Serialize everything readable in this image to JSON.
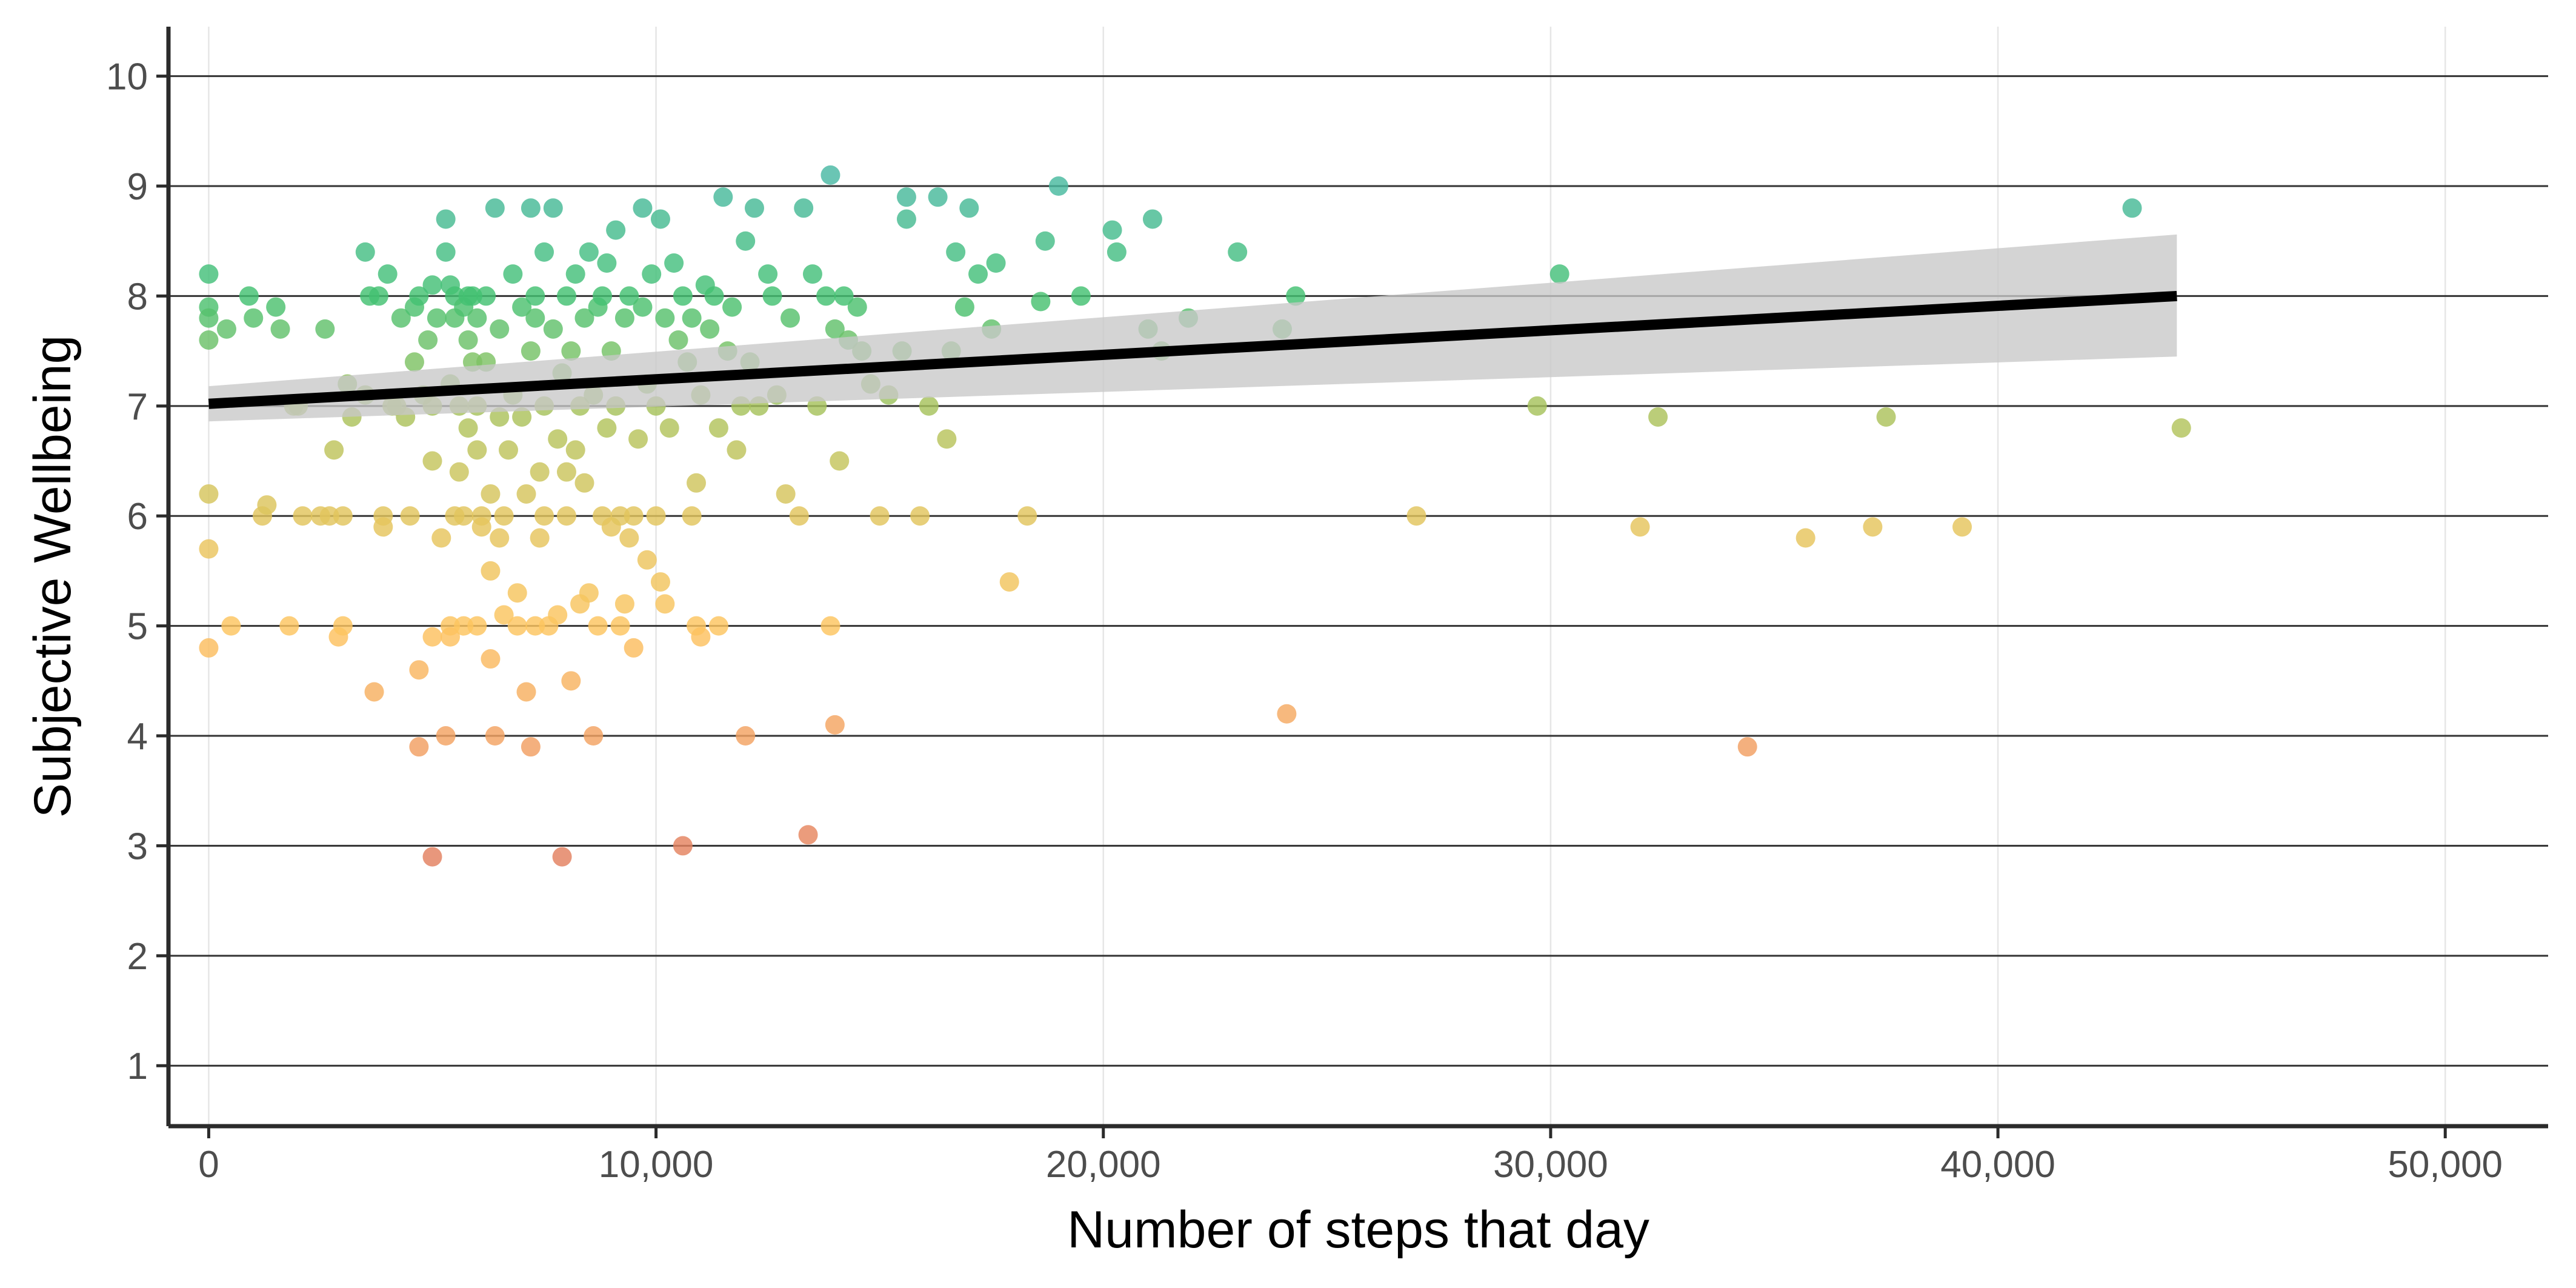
{
  "chart_data": {
    "type": "scatter",
    "title": "",
    "xlabel": "Number of steps that day",
    "ylabel": "Subjective Wellbeing",
    "xlim": [
      -900,
      52300
    ],
    "ylim": [
      0.45,
      10.45
    ],
    "x_ticks": [
      0,
      10000,
      20000,
      30000,
      40000,
      50000
    ],
    "x_tick_labels": [
      "0",
      "10,000",
      "20,000",
      "30,000",
      "40,000",
      "50,000"
    ],
    "y_ticks": [
      1,
      2,
      3,
      4,
      5,
      6,
      7,
      8,
      9,
      10
    ],
    "y_tick_labels": [
      "1",
      "2",
      "3",
      "4",
      "5",
      "6",
      "7",
      "8",
      "9",
      "10"
    ],
    "grid": {
      "major_y": true,
      "x": true
    },
    "legend": "none",
    "color_scale": {
      "variable": "y",
      "stops": [
        {
          "value": 2.9,
          "color": "#e3805f"
        },
        {
          "value": 4.0,
          "color": "#f3a261"
        },
        {
          "value": 5.0,
          "color": "#fdc45f"
        },
        {
          "value": 6.0,
          "color": "#e2c55d"
        },
        {
          "value": 7.0,
          "color": "#a6c25c"
        },
        {
          "value": 8.0,
          "color": "#43c171"
        },
        {
          "value": 9.1,
          "color": "#49b8a4"
        }
      ]
    },
    "fit": {
      "type": "linear",
      "x": [
        0,
        44000
      ],
      "y": [
        7.02,
        8.0
      ],
      "ci_lower": [
        6.86,
        7.45
      ],
      "ci_upper": [
        7.18,
        8.56
      ],
      "line_color": "#000000",
      "band_color": "#c8c8c8"
    },
    "points": [
      [
        0,
        8.2
      ],
      [
        0,
        7.9
      ],
      [
        0,
        7.8
      ],
      [
        0,
        7.6
      ],
      [
        0,
        6.2
      ],
      [
        0,
        5.7
      ],
      [
        0,
        4.8
      ],
      [
        400,
        7.7
      ],
      [
        500,
        5.0
      ],
      [
        900,
        8.0
      ],
      [
        1000,
        7.8
      ],
      [
        1200,
        6.0
      ],
      [
        1300,
        6.1
      ],
      [
        1500,
        7.9
      ],
      [
        1600,
        7.7
      ],
      [
        1800,
        5.0
      ],
      [
        1900,
        7.0
      ],
      [
        2000,
        7.0
      ],
      [
        2100,
        6.0
      ],
      [
        2500,
        6.0
      ],
      [
        2600,
        7.7
      ],
      [
        2700,
        6.0
      ],
      [
        2800,
        6.6
      ],
      [
        2900,
        4.9
      ],
      [
        3000,
        5.0
      ],
      [
        3000,
        6.0
      ],
      [
        3100,
        7.2
      ],
      [
        3200,
        6.9
      ],
      [
        3500,
        8.4
      ],
      [
        3500,
        7.1
      ],
      [
        3600,
        8.0
      ],
      [
        3700,
        4.4
      ],
      [
        3800,
        8.0
      ],
      [
        3900,
        6.0
      ],
      [
        3900,
        5.9
      ],
      [
        4000,
        8.2
      ],
      [
        4100,
        7.0
      ],
      [
        4200,
        7.0
      ],
      [
        4300,
        7.8
      ],
      [
        4400,
        6.9
      ],
      [
        4500,
        6.0
      ],
      [
        4600,
        7.4
      ],
      [
        4600,
        7.9
      ],
      [
        4700,
        3.9
      ],
      [
        4700,
        4.6
      ],
      [
        4700,
        8.0
      ],
      [
        4800,
        7.1
      ],
      [
        4900,
        7.6
      ],
      [
        5000,
        8.1
      ],
      [
        5000,
        7.0
      ],
      [
        5000,
        6.5
      ],
      [
        5000,
        4.9
      ],
      [
        5000,
        2.9
      ],
      [
        5100,
        7.8
      ],
      [
        5200,
        5.8
      ],
      [
        5300,
        4.0
      ],
      [
        5300,
        8.7
      ],
      [
        5300,
        8.4
      ],
      [
        5400,
        8.1
      ],
      [
        5400,
        7.2
      ],
      [
        5400,
        5.0
      ],
      [
        5400,
        4.9
      ],
      [
        5500,
        6.0
      ],
      [
        5500,
        7.8
      ],
      [
        5500,
        8.0
      ],
      [
        5600,
        6.4
      ],
      [
        5600,
        7.0
      ],
      [
        5700,
        7.9
      ],
      [
        5700,
        6.0
      ],
      [
        5700,
        5.0
      ],
      [
        5800,
        8.0
      ],
      [
        5800,
        7.6
      ],
      [
        5800,
        6.8
      ],
      [
        5900,
        7.4
      ],
      [
        5900,
        8.0
      ],
      [
        6000,
        7.8
      ],
      [
        6000,
        7.0
      ],
      [
        6000,
        6.6
      ],
      [
        6000,
        5.0
      ],
      [
        6100,
        6.0
      ],
      [
        6100,
        5.9
      ],
      [
        6200,
        7.4
      ],
      [
        6200,
        8.0
      ],
      [
        6300,
        6.2
      ],
      [
        6300,
        5.5
      ],
      [
        6300,
        4.7
      ],
      [
        6400,
        4.0
      ],
      [
        6400,
        8.8
      ],
      [
        6500,
        5.8
      ],
      [
        6500,
        6.9
      ],
      [
        6500,
        7.7
      ],
      [
        6600,
        5.1
      ],
      [
        6600,
        6.0
      ],
      [
        6700,
        6.6
      ],
      [
        6800,
        7.1
      ],
      [
        6800,
        8.2
      ],
      [
        6900,
        5.3
      ],
      [
        6900,
        5.0
      ],
      [
        7000,
        7.9
      ],
      [
        7000,
        6.9
      ],
      [
        7100,
        4.4
      ],
      [
        7100,
        6.2
      ],
      [
        7200,
        3.9
      ],
      [
        7200,
        7.5
      ],
      [
        7200,
        8.8
      ],
      [
        7300,
        8.0
      ],
      [
        7300,
        5.0
      ],
      [
        7300,
        7.8
      ],
      [
        7400,
        6.4
      ],
      [
        7400,
        5.8
      ],
      [
        7500,
        8.4
      ],
      [
        7500,
        6.0
      ],
      [
        7500,
        7.0
      ],
      [
        7600,
        5.0
      ],
      [
        7700,
        8.8
      ],
      [
        7700,
        7.7
      ],
      [
        7800,
        6.7
      ],
      [
        7800,
        5.1
      ],
      [
        7900,
        2.9
      ],
      [
        7900,
        7.3
      ],
      [
        8000,
        6.4
      ],
      [
        8000,
        8.0
      ],
      [
        8000,
        6.0
      ],
      [
        8100,
        4.5
      ],
      [
        8100,
        7.5
      ],
      [
        8200,
        6.6
      ],
      [
        8200,
        8.2
      ],
      [
        8300,
        7.0
      ],
      [
        8300,
        5.2
      ],
      [
        8400,
        7.8
      ],
      [
        8400,
        6.3
      ],
      [
        8500,
        8.4
      ],
      [
        8500,
        5.3
      ],
      [
        8600,
        7.1
      ],
      [
        8600,
        4.0
      ],
      [
        8700,
        5.0
      ],
      [
        8700,
        7.9
      ],
      [
        8800,
        6.0
      ],
      [
        8800,
        8.0
      ],
      [
        8900,
        8.3
      ],
      [
        8900,
        6.8
      ],
      [
        9000,
        7.5
      ],
      [
        9000,
        5.9
      ],
      [
        9100,
        8.6
      ],
      [
        9100,
        7.0
      ],
      [
        9200,
        5.0
      ],
      [
        9200,
        6.0
      ],
      [
        9300,
        5.2
      ],
      [
        9300,
        7.8
      ],
      [
        9400,
        5.8
      ],
      [
        9400,
        8.0
      ],
      [
        9500,
        6.0
      ],
      [
        9500,
        4.8
      ],
      [
        9600,
        6.7
      ],
      [
        9700,
        7.9
      ],
      [
        9700,
        8.8
      ],
      [
        9800,
        5.6
      ],
      [
        9800,
        7.2
      ],
      [
        9900,
        8.2
      ],
      [
        10000,
        7.0
      ],
      [
        10000,
        6.0
      ],
      [
        10100,
        5.4
      ],
      [
        10100,
        8.7
      ],
      [
        10200,
        5.2
      ],
      [
        10200,
        7.8
      ],
      [
        10300,
        6.8
      ],
      [
        10400,
        8.3
      ],
      [
        10500,
        7.6
      ],
      [
        10600,
        8.0
      ],
      [
        10600,
        3.0
      ],
      [
        10700,
        7.4
      ],
      [
        10800,
        6.0
      ],
      [
        10800,
        7.8
      ],
      [
        10900,
        5.0
      ],
      [
        10900,
        6.3
      ],
      [
        11000,
        4.9
      ],
      [
        11000,
        7.1
      ],
      [
        11100,
        8.1
      ],
      [
        11200,
        7.7
      ],
      [
        11300,
        8.0
      ],
      [
        11400,
        5.0
      ],
      [
        11400,
        6.8
      ],
      [
        11500,
        8.9
      ],
      [
        11600,
        7.5
      ],
      [
        11700,
        7.9
      ],
      [
        11800,
        6.6
      ],
      [
        11900,
        7.0
      ],
      [
        12000,
        8.5
      ],
      [
        12000,
        4.0
      ],
      [
        12100,
        7.4
      ],
      [
        12200,
        8.8
      ],
      [
        12300,
        7.0
      ],
      [
        12500,
        8.2
      ],
      [
        12600,
        8.0
      ],
      [
        12700,
        7.1
      ],
      [
        12900,
        6.2
      ],
      [
        13000,
        7.8
      ],
      [
        13200,
        6.0
      ],
      [
        13300,
        8.8
      ],
      [
        13400,
        3.1
      ],
      [
        13500,
        8.2
      ],
      [
        13600,
        7.0
      ],
      [
        13800,
        8.0
      ],
      [
        13900,
        9.1
      ],
      [
        13900,
        5.0
      ],
      [
        14000,
        4.1
      ],
      [
        14000,
        7.7
      ],
      [
        14100,
        6.5
      ],
      [
        14200,
        8.0
      ],
      [
        14300,
        7.6
      ],
      [
        14500,
        7.9
      ],
      [
        14600,
        7.5
      ],
      [
        14800,
        7.2
      ],
      [
        15000,
        6.0
      ],
      [
        15200,
        7.1
      ],
      [
        15500,
        7.5
      ],
      [
        15600,
        8.9
      ],
      [
        15600,
        8.7
      ],
      [
        15900,
        6.0
      ],
      [
        16100,
        7.0
      ],
      [
        16300,
        8.9
      ],
      [
        16500,
        6.7
      ],
      [
        16600,
        7.5
      ],
      [
        16700,
        8.4
      ],
      [
        16900,
        7.9
      ],
      [
        17000,
        8.8
      ],
      [
        17200,
        8.2
      ],
      [
        17500,
        7.7
      ],
      [
        17600,
        8.3
      ],
      [
        17900,
        5.4
      ],
      [
        18300,
        6.0
      ],
      [
        18600,
        7.95
      ],
      [
        18700,
        8.5
      ],
      [
        19000,
        9.0
      ],
      [
        19500,
        8.0
      ],
      [
        20200,
        8.6
      ],
      [
        20300,
        8.4
      ],
      [
        21000,
        7.7
      ],
      [
        21100,
        8.7
      ],
      [
        21300,
        7.5
      ],
      [
        21900,
        7.8
      ],
      [
        23000,
        8.4
      ],
      [
        24000,
        7.7
      ],
      [
        24100,
        4.2
      ],
      [
        24300,
        8.0
      ],
      [
        27000,
        6.0
      ],
      [
        29700,
        7.0
      ],
      [
        30200,
        8.2
      ],
      [
        32000,
        5.9
      ],
      [
        32400,
        6.9
      ],
      [
        34400,
        3.9
      ],
      [
        35700,
        5.8
      ],
      [
        37200,
        5.9
      ],
      [
        37500,
        6.9
      ],
      [
        39200,
        5.9
      ],
      [
        43000,
        8.8
      ],
      [
        44100,
        6.8
      ]
    ]
  }
}
